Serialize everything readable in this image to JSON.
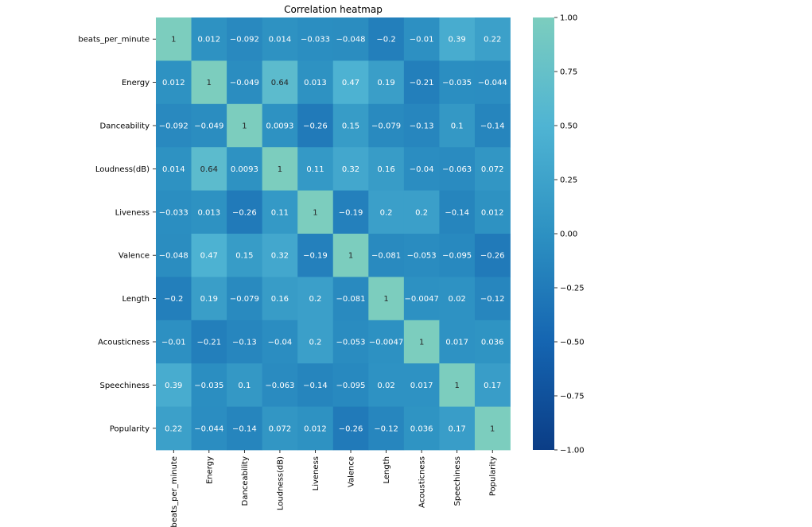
{
  "chart_data": {
    "type": "heatmap",
    "title": "Correlation heatmap",
    "xlabel": "",
    "ylabel": "",
    "variables": [
      "beats_per_minute",
      "Energy",
      "Danceability",
      "Loudness(dB)",
      "Liveness",
      "Valence",
      "Length",
      "Acousticness",
      "Speechiness",
      "Popularity"
    ],
    "matrix": [
      [
        1,
        0.012,
        -0.092,
        0.014,
        -0.033,
        -0.048,
        -0.2,
        -0.01,
        0.39,
        0.22
      ],
      [
        0.012,
        1,
        -0.049,
        0.64,
        0.013,
        0.47,
        0.19,
        -0.21,
        -0.035,
        -0.044
      ],
      [
        -0.092,
        -0.049,
        1,
        0.0093,
        -0.26,
        0.15,
        -0.079,
        -0.13,
        0.1,
        -0.14
      ],
      [
        0.014,
        0.64,
        0.0093,
        1,
        0.11,
        0.32,
        0.16,
        -0.04,
        -0.063,
        0.072
      ],
      [
        -0.033,
        0.013,
        -0.26,
        0.11,
        1,
        -0.19,
        0.2,
        0.2,
        -0.14,
        0.012
      ],
      [
        -0.048,
        0.47,
        0.15,
        0.32,
        -0.19,
        1,
        -0.081,
        -0.053,
        -0.095,
        -0.26
      ],
      [
        -0.2,
        0.19,
        -0.079,
        0.16,
        0.2,
        -0.081,
        1,
        -0.0047,
        0.02,
        -0.12
      ],
      [
        -0.01,
        -0.21,
        -0.13,
        -0.04,
        0.2,
        -0.053,
        -0.0047,
        1,
        0.017,
        0.036
      ],
      [
        0.39,
        -0.035,
        0.1,
        -0.063,
        -0.14,
        -0.095,
        0.02,
        0.017,
        1,
        0.17
      ],
      [
        0.22,
        -0.044,
        -0.14,
        0.072,
        0.012,
        -0.26,
        -0.12,
        0.036,
        0.17,
        1
      ]
    ],
    "value_range": [
      -1,
      1
    ],
    "colormap": "YlGnBu-centered",
    "colorbar": {
      "ticks": [
        1.0,
        0.75,
        0.5,
        0.25,
        0.0,
        -0.25,
        -0.5,
        -0.75,
        -1.0
      ],
      "tick_labels": [
        "1.00",
        "0.75",
        "0.50",
        "0.25",
        "0.00",
        "−0.25",
        "−0.50",
        "−0.75",
        "−1.00"
      ]
    },
    "annotations": true
  }
}
